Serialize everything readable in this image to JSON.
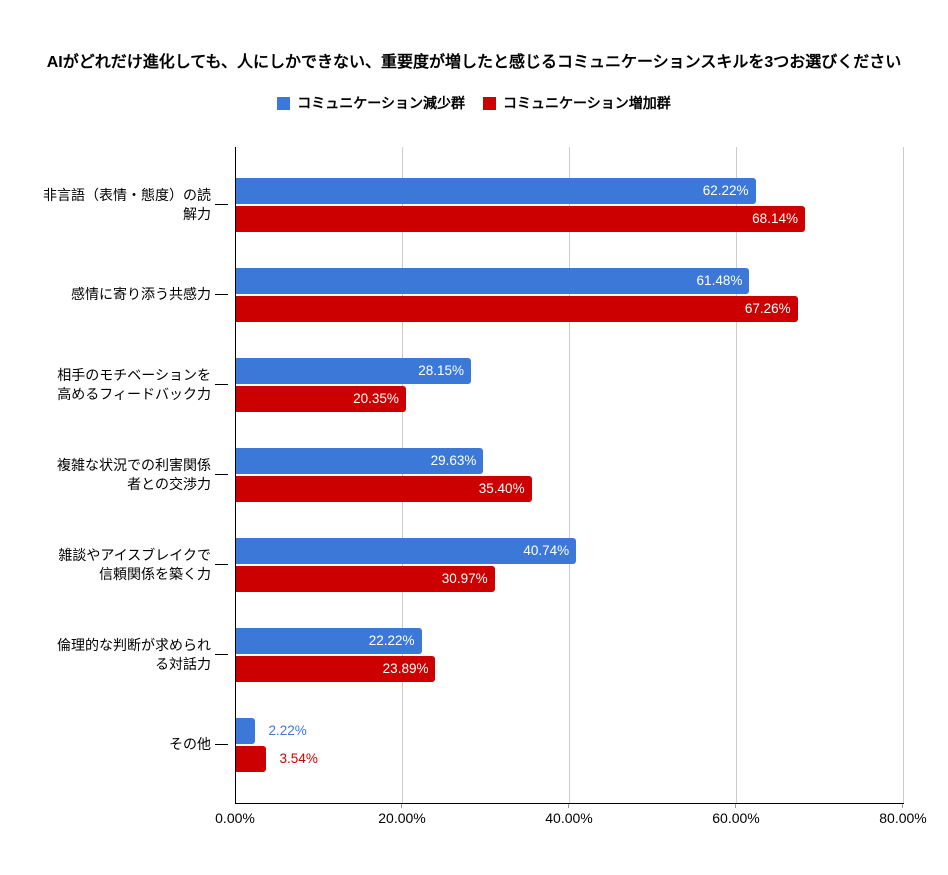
{
  "chart_data": {
    "type": "bar",
    "orientation": "horizontal",
    "title": "AIがどれだけ進化しても、人にしかできない、重要度が増したと感じるコミュニケーションスキルを3つお選びください",
    "categories": [
      "非言語（表情・態度）の読\n解力",
      "感情に寄り添う共感力",
      "相手のモチベーションを\n高めるフィードバック力",
      "複雑な状況での利害関係\n者との交渉力",
      "雑談やアイスブレイクで\n信頼関係を築く力",
      "倫理的な判断が求められ\nる対話力",
      "その他"
    ],
    "series": [
      {
        "key": "decrease-group",
        "name": "コミュニケーション減少群",
        "color": "#3c78d8",
        "values": [
          62.22,
          61.48,
          28.15,
          29.63,
          40.74,
          22.22,
          2.22
        ],
        "labels": [
          "62.22%",
          "61.48%",
          "28.15%",
          "29.63%",
          "40.74%",
          "22.22%",
          "2.22%"
        ]
      },
      {
        "key": "increase-group",
        "name": "コミュニケーション増加群",
        "color": "#cc0000",
        "values": [
          68.14,
          67.26,
          20.35,
          35.4,
          30.97,
          23.89,
          3.54
        ],
        "labels": [
          "68.14%",
          "67.26%",
          "20.35%",
          "35.40%",
          "30.97%",
          "23.89%",
          "3.54%"
        ]
      }
    ],
    "xlim": [
      0,
      80
    ],
    "x_ticks": [
      {
        "value": 0,
        "label": "0.00%"
      },
      {
        "value": 20,
        "label": "20.00%"
      },
      {
        "value": 40,
        "label": "40.00%"
      },
      {
        "value": 60,
        "label": "60.00%"
      },
      {
        "value": 80,
        "label": "80.00%"
      }
    ],
    "grid": true,
    "legend_position": "top",
    "colors": {
      "value_label_inside": "#ffffff",
      "gridline": "#cccccc",
      "axis": "#000000",
      "background": "#ffffff"
    }
  }
}
